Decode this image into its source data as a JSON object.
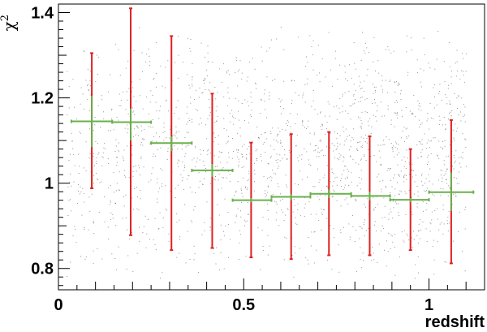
{
  "chart_data": {
    "type": "scatter",
    "xlabel": "redshift",
    "ylabel": "χ",
    "ylabel_superscript": "2",
    "xlim": [
      0,
      1.15
    ],
    "ylim": [
      0.75,
      1.42
    ],
    "x_ticks": [
      0,
      0.5,
      1
    ],
    "x_tick_labels": [
      "0",
      "0.5",
      "1"
    ],
    "y_ticks": [
      0.8,
      1.0,
      1.2,
      1.4
    ],
    "y_tick_labels": [
      "0.8",
      "1",
      "1.2",
      "1.4"
    ],
    "grid": false,
    "series": [
      {
        "kind": "background-scatter",
        "color": "#555555",
        "description_points": "dense cloud of small gray points spread across redshift 0.02–1.1 and chi-squared 0.75–1.42, densest around 0.5–0.9 and 0.85–1.1"
      },
      {
        "kind": "spread-error-bars",
        "color": "#e02020",
        "x": [
          0.09,
          0.195,
          0.305,
          0.415,
          0.52,
          0.628,
          0.73,
          0.84,
          0.95,
          1.06
        ],
        "y": [
          1.145,
          1.143,
          1.094,
          1.03,
          0.96,
          0.968,
          0.975,
          0.97,
          0.961,
          0.979
        ],
        "y_low": [
          0.988,
          0.878,
          0.843,
          0.848,
          0.826,
          0.822,
          0.831,
          0.831,
          0.843,
          0.812
        ],
        "y_high": [
          1.305,
          1.41,
          1.345,
          1.21,
          1.095,
          1.115,
          1.12,
          1.11,
          1.08,
          1.148
        ]
      },
      {
        "kind": "mean-error-crosses",
        "color": "#6ab04c",
        "x": [
          0.09,
          0.195,
          0.305,
          0.415,
          0.52,
          0.628,
          0.73,
          0.84,
          0.95,
          1.06
        ],
        "y": [
          1.145,
          1.143,
          1.094,
          1.03,
          0.96,
          0.968,
          0.975,
          0.97,
          0.961,
          0.979
        ],
        "x_low": [
          0.035,
          0.145,
          0.25,
          0.36,
          0.47,
          0.575,
          0.68,
          0.79,
          0.895,
          1.0
        ],
        "x_high": [
          0.145,
          0.25,
          0.36,
          0.47,
          0.575,
          0.68,
          0.79,
          0.895,
          1.0,
          1.12
        ],
        "y_low": [
          1.085,
          1.1,
          1.075,
          1.015,
          0.955,
          0.96,
          0.965,
          0.96,
          0.955,
          0.935
        ],
        "y_high": [
          1.205,
          1.175,
          1.11,
          1.045,
          0.965,
          0.975,
          0.985,
          0.98,
          0.965,
          1.025
        ]
      }
    ]
  }
}
